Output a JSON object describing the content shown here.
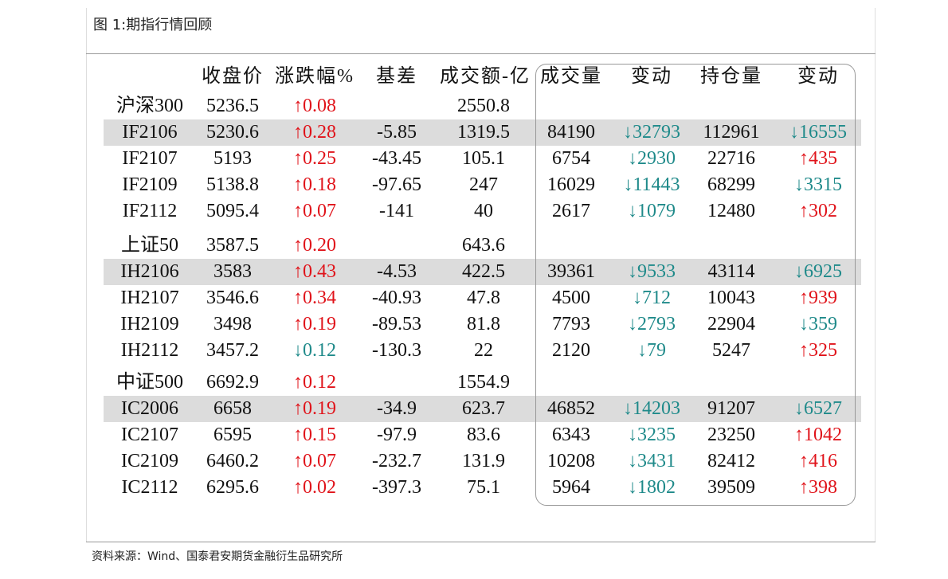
{
  "caption": "图 1:期指行情回顾",
  "table": {
    "header": [
      null,
      "收盘价",
      "涨跌幅%",
      "基差",
      "成交额-亿",
      "成交量",
      "变动",
      "持仓量",
      "变动"
    ],
    "rows": [
      [
        "沪深300",
        "5236.5",
        "↑0.08",
        null,
        "2550.8",
        null,
        null,
        null,
        null
      ],
      [
        "IF2106",
        "5230.6",
        "↑0.28",
        "-5.85",
        "1319.5",
        "84190",
        "↓32793",
        "112961",
        "↓16555"
      ],
      [
        "IF2107",
        "5193",
        "↑0.25",
        "-43.45",
        "105.1",
        "6754",
        "↓2930",
        "22716",
        "↑435"
      ],
      [
        "IF2109",
        "5138.8",
        "↑0.18",
        "-97.65",
        "247",
        "16029",
        "↓11443",
        "68299",
        "↓3315"
      ],
      [
        "IF2112",
        "5095.4",
        "↑0.07",
        "-141",
        "40",
        "2617",
        "↓1079",
        "12480",
        "↑302"
      ],
      [
        "上证50",
        "3587.5",
        "↑0.20",
        null,
        "643.6",
        null,
        null,
        null,
        null
      ],
      [
        "IH2106",
        "3583",
        "↑0.43",
        "-4.53",
        "422.5",
        "39361",
        "↓9533",
        "43114",
        "↓6925"
      ],
      [
        "IH2107",
        "3546.6",
        "↑0.34",
        "-40.93",
        "47.8",
        "4500",
        "↓712",
        "10043",
        "↑939"
      ],
      [
        "IH2109",
        "3498",
        "↑0.19",
        "-89.53",
        "81.8",
        "7793",
        "↓2793",
        "22904",
        "↓359"
      ],
      [
        "IH2112",
        "3457.2",
        "↓0.12",
        "-130.3",
        "22",
        "2120",
        "↓79",
        "5247",
        "↑325"
      ],
      [
        "中证500",
        "6692.9",
        "↑0.12",
        null,
        "1554.9",
        null,
        null,
        null,
        null
      ],
      [
        "IC2006",
        "6658",
        "↑0.19",
        "-34.9",
        "623.7",
        "46852",
        "↓14203",
        "91207",
        "↓6527"
      ],
      [
        "IC2107",
        "6595",
        "↑0.15",
        "-97.9",
        "83.6",
        "6343",
        "↓3235",
        "23250",
        "↑1042"
      ],
      [
        "IC2109",
        "6460.2",
        "↑0.07",
        "-232.7",
        "131.9",
        "10208",
        "↓3431",
        "82412",
        "↑416"
      ],
      [
        "IC2112",
        "6295.6",
        "↑0.02",
        "-397.3",
        "75.1",
        "5964",
        "↓1802",
        "39509",
        "↑398"
      ]
    ],
    "shaded_rows": [
      1,
      6,
      11
    ]
  },
  "footer": "资料来源：Wind、国泰君安期货金融衍生品研究所"
}
